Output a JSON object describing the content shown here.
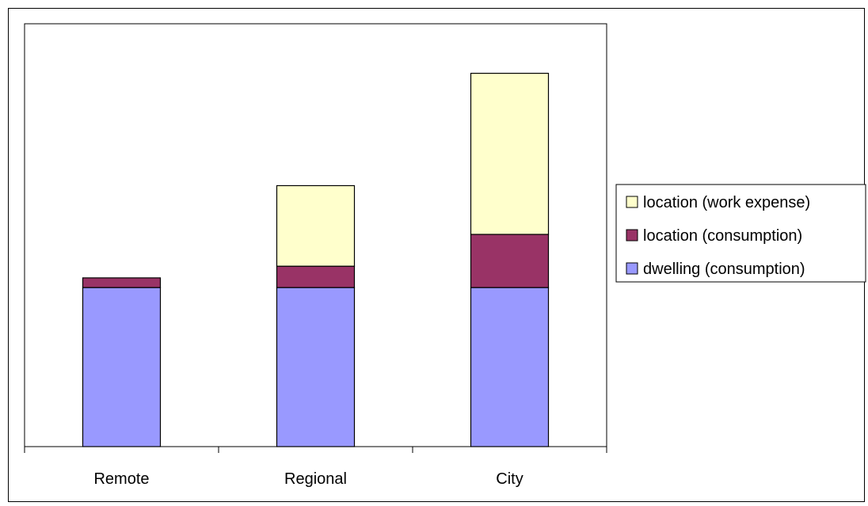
{
  "chart_data": {
    "type": "bar",
    "stacked": true,
    "categories": [
      "Remote",
      "Regional",
      "City"
    ],
    "series": [
      {
        "name": "dwelling (consumption)",
        "color": "#9999ff",
        "values": [
          39.5,
          39.5,
          39.5
        ]
      },
      {
        "name": "location (consumption)",
        "color": "#993366",
        "values": [
          2.4,
          5.3,
          13.2
        ]
      },
      {
        "name": "location (work expense)",
        "color": "#ffffcc",
        "values": [
          0,
          20,
          40
        ]
      }
    ],
    "title": "",
    "xlabel": "",
    "ylabel": "",
    "ylim": [
      0,
      105
    ],
    "grid": false,
    "legend_position": "right",
    "legend_order": [
      "location (work expense)",
      "location (consumption)",
      "dwelling (consumption)"
    ]
  }
}
